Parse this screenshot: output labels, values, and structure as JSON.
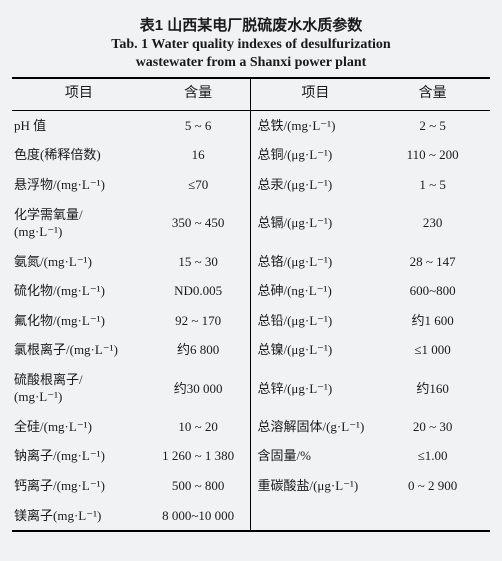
{
  "caption_cn": "表1  山西某电厂脱硫废水水质参数",
  "caption_en_line1": "Tab. 1  Water quality indexes of desulfurization",
  "caption_en_line2": "wastewater from a Shanxi power plant",
  "headers": {
    "l1": "项目",
    "v1": "含量",
    "l2": "项目",
    "v2": "含量"
  },
  "rows": [
    {
      "l1": "pH 值",
      "v1": "5 ~ 6",
      "l2": "总铁/(mg·L⁻¹)",
      "v2": "2 ~ 5"
    },
    {
      "l1": "色度(稀释倍数)",
      "v1": "16",
      "l2": "总铜/(μg·L⁻¹)",
      "v2": "110 ~ 200"
    },
    {
      "l1": "悬浮物/(mg·L⁻¹)",
      "v1": "≤70",
      "l2": "总汞/(μg·L⁻¹)",
      "v2": "1 ~ 5"
    },
    {
      "l1": "化学需氧量/\n(mg·L⁻¹)",
      "v1": "350 ~ 450",
      "l2": "总镉/(μg·L⁻¹)",
      "v2": "230"
    },
    {
      "l1": "氨氮/(mg·L⁻¹)",
      "v1": "15 ~ 30",
      "l2": "总铬/(μg·L⁻¹)",
      "v2": "28 ~ 147"
    },
    {
      "l1": "硫化物/(mg·L⁻¹)",
      "v1": "ND0.005",
      "l2": "总砷/(ng·L⁻¹)",
      "v2": "600~800"
    },
    {
      "l1": "氟化物/(mg·L⁻¹)",
      "v1": "92 ~ 170",
      "l2": "总铅/(μg·L⁻¹)",
      "v2": "约1 600"
    },
    {
      "l1": "氯根离子/(mg·L⁻¹)",
      "v1": "约6 800",
      "l2": "总镍/(μg·L⁻¹)",
      "v2": "≤1 000"
    },
    {
      "l1": "硫酸根离子/\n(mg·L⁻¹)",
      "v1": "约30 000",
      "l2": "总锌/(μg·L⁻¹)",
      "v2": "约160"
    },
    {
      "l1": "全硅/(mg·L⁻¹)",
      "v1": "10 ~ 20",
      "l2": "总溶解固体/(g·L⁻¹)",
      "v2": "20 ~ 30"
    },
    {
      "l1": "钠离子/(mg·L⁻¹)",
      "v1": "1 260 ~ 1 380",
      "l2": "含固量/%",
      "v2": "≤1.00"
    },
    {
      "l1": "钙离子/(mg·L⁻¹)",
      "v1": "500 ~ 800",
      "l2": "重碳酸盐/(μg·L⁻¹)",
      "v2": "0 ~ 2 900"
    },
    {
      "l1": "镁离子(mg·L⁻¹)",
      "v1": "8 000~10 000",
      "l2": "",
      "v2": ""
    }
  ]
}
